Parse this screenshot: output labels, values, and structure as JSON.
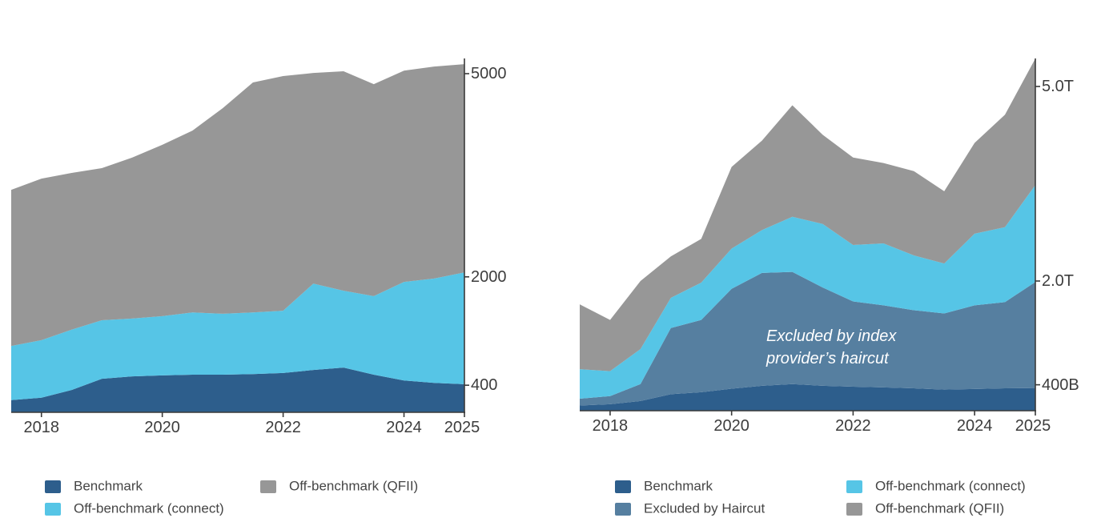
{
  "chart_data": [
    {
      "id": "left-chart",
      "type": "area",
      "stacked": true,
      "title": "",
      "xlabel": "",
      "ylabel": "",
      "grid": false,
      "legend_position": "bottom",
      "axis_side": "right",
      "xlim": [
        2017.5,
        2025
      ],
      "ylim": [
        0,
        5200
      ],
      "x": [
        2017.5,
        2018,
        2018.5,
        2019,
        2019.5,
        2020,
        2020.5,
        2021,
        2021.5,
        2022,
        2022.5,
        2023,
        2023.5,
        2024,
        2024.5,
        2025
      ],
      "x_tick_labels": [
        "2018",
        "2020",
        "2022",
        "2024",
        "2025"
      ],
      "x_tick_values": [
        2018,
        2020,
        2022,
        2024,
        2025
      ],
      "y_ticks": [
        {
          "value": 400,
          "label": "400"
        },
        {
          "value": 2000,
          "label": "2000"
        },
        {
          "value": 5000,
          "label": "5000"
        }
      ],
      "series": [
        {
          "name": "Benchmark",
          "color": "#2d5e8c",
          "values": [
            180,
            215,
            330,
            495,
            530,
            545,
            555,
            555,
            565,
            580,
            625,
            660,
            555,
            470,
            435,
            415
          ]
        },
        {
          "name": "Off-benchmark (connect)",
          "color": "#56c5e6",
          "values": [
            800,
            850,
            890,
            865,
            855,
            875,
            920,
            900,
            910,
            920,
            1275,
            1135,
            1160,
            1455,
            1540,
            1650
          ]
        },
        {
          "name": "Off-benchmark (QFII)",
          "color": "#979797",
          "values": [
            2305,
            2385,
            2315,
            2245,
            2375,
            2530,
            2685,
            3035,
            3395,
            3465,
            3110,
            3240,
            3130,
            3120,
            3130,
            3075
          ]
        }
      ]
    },
    {
      "id": "right-chart",
      "type": "area",
      "stacked": true,
      "title": "",
      "xlabel": "",
      "ylabel": "",
      "grid": false,
      "legend_position": "bottom",
      "axis_side": "right",
      "xlim": [
        2017.5,
        2025
      ],
      "ylim": [
        0,
        5400
      ],
      "x": [
        2017.5,
        2018,
        2018.5,
        2019,
        2019.5,
        2020,
        2020.5,
        2021,
        2021.5,
        2022,
        2022.5,
        2023,
        2023.5,
        2024,
        2024.5,
        2025
      ],
      "x_tick_labels": [
        "2018",
        "2020",
        "2022",
        "2024",
        "2025"
      ],
      "x_tick_values": [
        2018,
        2020,
        2022,
        2024,
        2025
      ],
      "y_ticks": [
        {
          "value": 400,
          "label": "400B"
        },
        {
          "value": 2000,
          "label": "2.0T"
        },
        {
          "value": 5000,
          "label": "5.0T"
        }
      ],
      "series": [
        {
          "name": "Benchmark",
          "color": "#2d5e8c",
          "values": [
            80,
            100,
            150,
            255,
            285,
            340,
            385,
            410,
            385,
            370,
            360,
            345,
            325,
            335,
            345,
            350
          ]
        },
        {
          "name": "Excluded by Haircut",
          "color": "#567fa0",
          "values": [
            105,
            125,
            260,
            1020,
            1115,
            1540,
            1740,
            1730,
            1515,
            1315,
            1265,
            1205,
            1175,
            1290,
            1330,
            1635
          ]
        },
        {
          "name": "Off-benchmark (connect)",
          "color": "#56c5e6",
          "values": [
            455,
            385,
            540,
            465,
            575,
            620,
            660,
            850,
            980,
            870,
            955,
            845,
            770,
            1105,
            1155,
            1495
          ]
        },
        {
          "name": "Off-benchmark (QFII)",
          "color": "#979797",
          "values": [
            1000,
            790,
            1050,
            640,
            675,
            1260,
            1380,
            1720,
            1375,
            1350,
            1240,
            1300,
            1115,
            1400,
            1735,
            1950
          ]
        }
      ],
      "annotation": {
        "lines": [
          "Excluded by index",
          "provider’s haircut"
        ],
        "color": "#ffffff"
      }
    }
  ]
}
